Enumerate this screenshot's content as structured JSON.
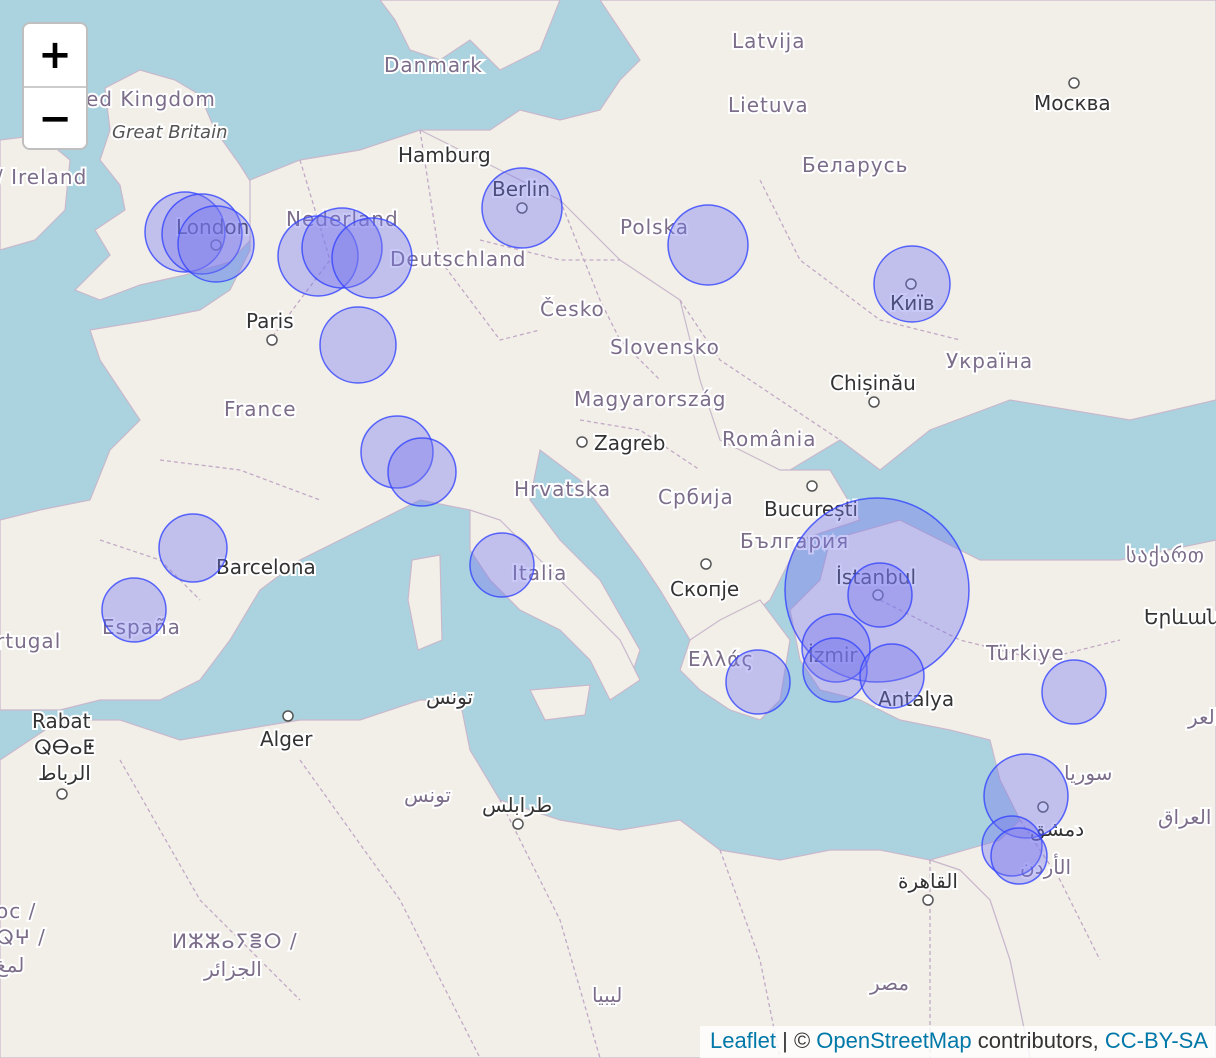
{
  "map": {
    "zoom_in_label": "+",
    "zoom_out_label": "−",
    "labels": {
      "danmark": "Danmark",
      "latvija": "Latvija",
      "united_kingdom": "ed Kingdom",
      "great_britain": "Great Britain",
      "lietuva": "Lietuva",
      "moskva": "Москва",
      "ireland": "/ Ireland",
      "hamburg": "Hamburg",
      "belarus": "Беларусь",
      "berlin": "Berlin",
      "nederland": "Nederland",
      "london": "London",
      "polska": "Polska",
      "deutschland": "Deutschland",
      "kyiv": "Київ",
      "paris": "Paris",
      "cesko": "Česko",
      "slovensko": "Slovensko",
      "ukraina": "Україна",
      "chisinau": "Chișinău",
      "france": "France",
      "magyarorszag": "Magyarország",
      "zagreb": "Zagreb",
      "romania": "România",
      "hrvatska": "Hrvatska",
      "srbija": "Србија",
      "bucuresti": "București",
      "bulgaria": "България",
      "barcelona": "Barcelona",
      "italia": "Italia",
      "skopje": "Скопје",
      "istanbul": "İstanbul",
      "sakartvelo": "საქართ",
      "espana": "España",
      "portugal": "rtugal",
      "yerevan": "Երևան",
      "ellas": "Ελλάς",
      "izmir": "İzmir",
      "turkiye": "Türkiye",
      "tunis": "تونس",
      "antalya": "Antalya",
      "rabat": "Rabat",
      "rabat_tifinagh": "ⵕⴱⴰⵟ",
      "rabat_ar": "الرباط",
      "alger": "Alger",
      "iraq_partial": "العر",
      "syria": "سوريا",
      "tunisia": "تونس",
      "tripoli": "طرابلس",
      "dimashq": "دمشق",
      "iraq": "العراق",
      "jordan": "الأردن",
      "cairo": "القاهرة",
      "maroc": "oc /",
      "maroc_tif": "ⵕⵖ /",
      "maroc_ar": "لمغ",
      "algeria_tif": "ⵍⵣⵣⴰⵢⴻⵔ /",
      "algeria_ar": "الجزائر",
      "libya": "ليبيا",
      "misr": "مصر"
    }
  },
  "attribution": {
    "leaflet": "Leaflet",
    "separator": " | © ",
    "osm": "OpenStreetMap",
    "contributors": " contributors, ",
    "license": "CC-BY-SA"
  },
  "colors": {
    "water": "#aad3df",
    "land": "#f2efe9",
    "marker_fill": "#7777ee",
    "marker_stroke": "#3344ff"
  }
}
